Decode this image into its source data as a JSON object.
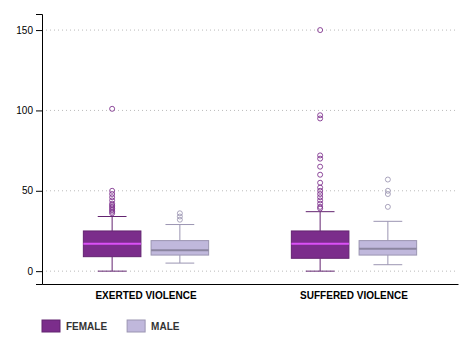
{
  "chart_data": {
    "type": "box",
    "categories": [
      "EXERTED VIOLENCE",
      "SUFFERED VIOLENCE"
    ],
    "series": [
      {
        "name": "FEMALE",
        "color": "#7B2D8B",
        "values": [
          {
            "whislo": 0,
            "q1": 9,
            "med": 17,
            "q3": 25,
            "whishi": 34,
            "fliers": [
              36,
              37,
              38,
              39,
              40,
              41,
              42,
              44,
              46,
              48,
              50,
              101
            ]
          },
          {
            "whislo": 0,
            "q1": 8,
            "med": 17,
            "q3": 25,
            "whishi": 37,
            "fliers": [
              39,
              40,
              42,
              44,
              46,
              48,
              50,
              52,
              55,
              60,
              65,
              70,
              72,
              95,
              97,
              150
            ]
          }
        ]
      },
      {
        "name": "MALE",
        "color": "#C0B8DC",
        "values": [
          {
            "whislo": 5,
            "q1": 10,
            "med": 13,
            "q3": 19,
            "whishi": 29,
            "fliers": [
              32,
              34,
              36
            ]
          },
          {
            "whislo": 4,
            "q1": 10,
            "med": 14,
            "q3": 19,
            "whishi": 31,
            "fliers": [
              40,
              48,
              50,
              57
            ]
          }
        ]
      }
    ],
    "ylim": [
      -8,
      160
    ],
    "yticks": [
      0,
      50,
      100,
      150
    ],
    "grid": true,
    "legend": "bottom"
  }
}
